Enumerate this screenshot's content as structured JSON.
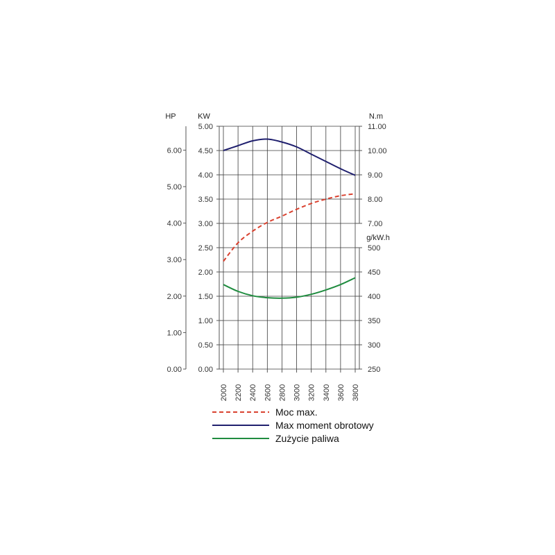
{
  "chart_data": {
    "type": "line",
    "x": [
      2000,
      2200,
      2400,
      2600,
      2800,
      3000,
      3200,
      3400,
      3600,
      3800
    ],
    "x_tick_labels": [
      "2000",
      "2200",
      "2400",
      "2600",
      "2800",
      "3000",
      "3200",
      "3400",
      "3600",
      "3800"
    ],
    "xlim": [
      2000,
      3800
    ],
    "grid": true,
    "axes": {
      "hp": {
        "label": "HP",
        "ticks": [
          "0.00",
          "1.00",
          "2.00",
          "3.00",
          "4.00",
          "5.00",
          "6.00"
        ],
        "values": [
          0,
          1,
          2,
          3,
          4,
          5,
          6
        ],
        "range": [
          0,
          6.7
        ]
      },
      "kw": {
        "label": "KW",
        "ticks": [
          "0.00",
          "0.50",
          "1.00",
          "1.50",
          "2.00",
          "2.50",
          "3.00",
          "3.50",
          "4.00",
          "4.50",
          "5.00"
        ],
        "values": [
          0,
          0.5,
          1,
          1.5,
          2,
          2.5,
          3,
          3.5,
          4,
          4.5,
          5
        ],
        "range": [
          0,
          5
        ]
      },
      "nm": {
        "label": "N.m",
        "ticks": [
          "7.00",
          "8.00",
          "9.00",
          "10.00",
          "11.00"
        ],
        "values": [
          7,
          8,
          9,
          10,
          11
        ],
        "range": [
          7,
          11
        ]
      },
      "gkwh": {
        "label": "g/kW.h",
        "ticks": [
          "250",
          "300",
          "350",
          "400",
          "450",
          "500"
        ],
        "values": [
          250,
          300,
          350,
          400,
          450,
          500
        ],
        "range": [
          250,
          500
        ]
      }
    },
    "series": [
      {
        "name": "Moc max.",
        "axis": "kw",
        "color": "#d9412f",
        "dash": true,
        "x": [
          2000,
          2200,
          2400,
          2600,
          2800,
          3000,
          3200,
          3400,
          3600,
          3800
        ],
        "values": [
          2.22,
          2.6,
          2.84,
          3.02,
          3.15,
          3.29,
          3.41,
          3.5,
          3.57,
          3.61
        ]
      },
      {
        "name": "Max moment obrotowy",
        "axis": "nm",
        "color": "#1f1f6e",
        "dash": false,
        "x": [
          2000,
          2200,
          2400,
          2600,
          2800,
          3000,
          3200,
          3400,
          3600,
          3800
        ],
        "values": [
          10.0,
          10.2,
          10.4,
          10.47,
          10.35,
          10.15,
          9.85,
          9.55,
          9.25,
          8.98
        ]
      },
      {
        "name": "Zużycie paliwa",
        "axis": "gkwh",
        "color": "#1f8c3f",
        "dash": false,
        "x": [
          2000,
          2200,
          2400,
          2600,
          2800,
          3000,
          3200,
          3400,
          3600,
          3800
        ],
        "values": [
          424,
          410,
          401,
          397,
          396,
          398,
          404,
          413,
          424,
          438
        ]
      }
    ]
  }
}
